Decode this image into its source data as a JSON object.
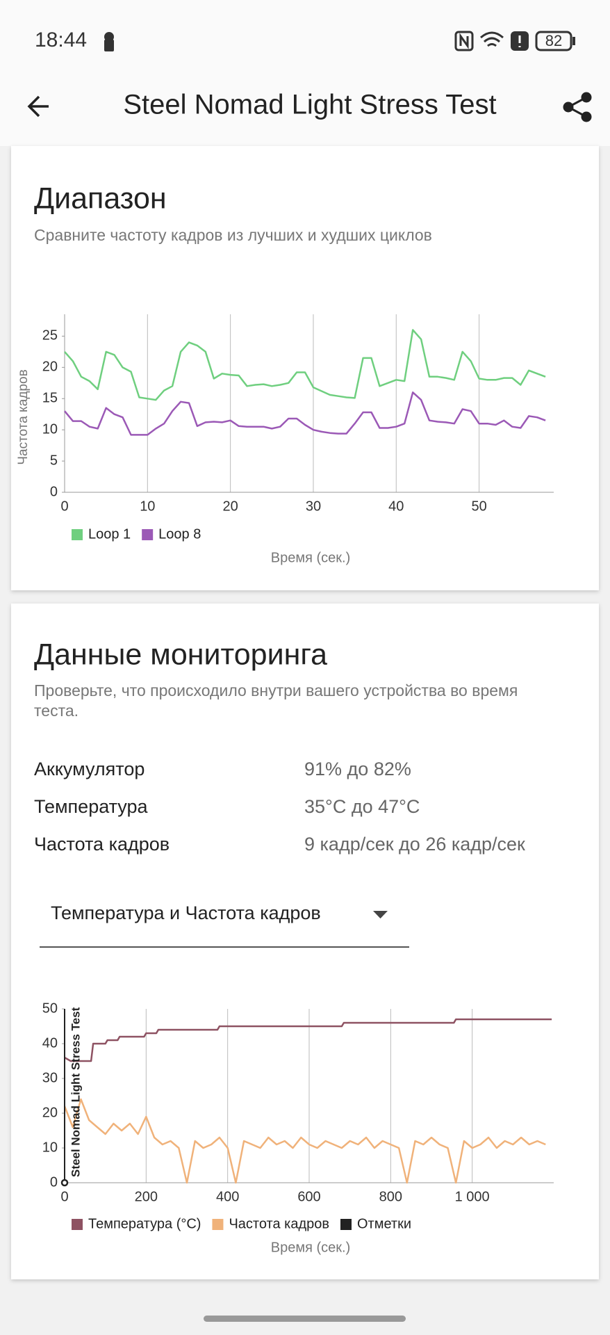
{
  "status_bar": {
    "time": "18:44",
    "battery": "82"
  },
  "app_bar": {
    "title": "Steel Nomad Light Stress Test"
  },
  "range_card": {
    "title": "Диапазон",
    "subtitle": "Сравните частоту кадров из лучших и худших циклов"
  },
  "monitoring_card": {
    "title": "Данные мониторинга",
    "subtitle": [
      "Проверьте, что происходило внутри вашего устройства во время",
      "теста."
    ],
    "rows": [
      {
        "label": "Аккумулятор",
        "value": "91% до 82%"
      },
      {
        "label": "Температура",
        "value": "35°C до 47°C"
      },
      {
        "label": "Частота кадров",
        "value": "9 кадр/сек до 26 кадр/сек"
      }
    ],
    "dropdown": "Температура и Частота кадров"
  },
  "chart_data": [
    {
      "type": "line",
      "y_label": "Частота кадров",
      "x_label": "Время (сек.)",
      "xlim": [
        0,
        59
      ],
      "xticks": [
        0,
        10,
        20,
        30,
        40,
        50
      ],
      "ylim": [
        0,
        28.5
      ],
      "yticks": [
        0,
        5,
        10,
        15,
        20,
        25
      ],
      "grid": true,
      "x": [
        0,
        1,
        2,
        3,
        4,
        5,
        6,
        7,
        8,
        9,
        10,
        11,
        12,
        13,
        14,
        15,
        16,
        17,
        18,
        19,
        20,
        21,
        22,
        23,
        24,
        25,
        26,
        27,
        28,
        29,
        30,
        31,
        32,
        33,
        34,
        35,
        36,
        37,
        38,
        39,
        40,
        41,
        42,
        43,
        44,
        45,
        46,
        47,
        48,
        49,
        50,
        51,
        52,
        53,
        54,
        55,
        56,
        57,
        58
      ],
      "series": [
        {
          "name": "Loop 1",
          "color": "#6fcf7f",
          "values": [
            22.5,
            21,
            18.5,
            17.8,
            16.5,
            22.5,
            22,
            20,
            19.3,
            15.2,
            15,
            14.8,
            16.3,
            17,
            22.5,
            24,
            23.5,
            22.5,
            18.2,
            19,
            18.8,
            18.7,
            17,
            17.2,
            17.3,
            17,
            17.2,
            17.5,
            19.2,
            19.2,
            16.8,
            16.2,
            15.6,
            15.4,
            15.2,
            15.1,
            21.5,
            21.5,
            17,
            17.5,
            18,
            17.8,
            26,
            24.5,
            18.5,
            18.5,
            18.3,
            18,
            22.5,
            21,
            18.2,
            18,
            18,
            18.3,
            18.3,
            17.2,
            19.5,
            19,
            18.5
          ]
        },
        {
          "name": "Loop 8",
          "color": "#9b59b6",
          "values": [
            13,
            11.4,
            11.4,
            10.5,
            10.2,
            13.5,
            12.5,
            12,
            9.2,
            9.2,
            9.2,
            10.2,
            11,
            13,
            14.5,
            14.3,
            10.6,
            11.2,
            11.3,
            11.2,
            11.5,
            10.6,
            10.5,
            10.5,
            10.5,
            10.2,
            10.5,
            11.8,
            11.8,
            10.8,
            10,
            9.7,
            9.5,
            9.4,
            9.4,
            11,
            12.8,
            12.8,
            10.3,
            10.3,
            10.5,
            11,
            16,
            14.8,
            11.5,
            11.3,
            11.2,
            11,
            13.3,
            13,
            11,
            11,
            10.8,
            11.5,
            10.5,
            10.3,
            12.2,
            12,
            11.5
          ]
        }
      ]
    },
    {
      "type": "line",
      "x_label": "Время (сек.)",
      "xlim": [
        0,
        1200
      ],
      "xticks": [
        0,
        200,
        400,
        600,
        800,
        {
          "value": 1000,
          "label": "1 000"
        }
      ],
      "ylim": [
        0,
        50
      ],
      "yticks": [
        0,
        10,
        20,
        30,
        40,
        50
      ],
      "grid": true,
      "series": [
        {
          "name": "Температура (°C)",
          "color": "#8e5262",
          "x": [
            0,
            15,
            30,
            65,
            70,
            100,
            105,
            130,
            135,
            195,
            200,
            225,
            230,
            375,
            380,
            680,
            685,
            955,
            960,
            1195
          ],
          "values": [
            36,
            35,
            35,
            35,
            40,
            40,
            41,
            41,
            42,
            42,
            43,
            43,
            44,
            44,
            45,
            45,
            46,
            46,
            47,
            47
          ]
        },
        {
          "name": "Частота кадров",
          "color": "#f0b27a",
          "x": [
            0,
            20,
            40,
            60,
            80,
            100,
            120,
            140,
            160,
            180,
            200,
            220,
            240,
            260,
            280,
            300,
            320,
            340,
            360,
            380,
            400,
            420,
            440,
            460,
            480,
            500,
            520,
            540,
            560,
            580,
            600,
            620,
            640,
            660,
            680,
            700,
            720,
            740,
            760,
            780,
            800,
            820,
            840,
            860,
            880,
            900,
            920,
            940,
            960,
            980,
            1000,
            1020,
            1040,
            1060,
            1080,
            1100,
            1120,
            1140,
            1160,
            1180
          ],
          "values": [
            22,
            16,
            24,
            18,
            16,
            14,
            17,
            15,
            17,
            14,
            19,
            13,
            11,
            12,
            10,
            0,
            12,
            10,
            11,
            13,
            10,
            0,
            12,
            11,
            10,
            13,
            11,
            12,
            10,
            13,
            11,
            10,
            12,
            11,
            10,
            12,
            11,
            13,
            10,
            12,
            11,
            10,
            0,
            12,
            11,
            13,
            11,
            10,
            0,
            12,
            10,
            11,
            13,
            10,
            12,
            11,
            13,
            11,
            12,
            11
          ]
        },
        {
          "name": "Отметки",
          "color": "#222222",
          "x": [
            0
          ],
          "labels": [
            "Steel Nomad Light Stress Test"
          ]
        }
      ]
    }
  ]
}
